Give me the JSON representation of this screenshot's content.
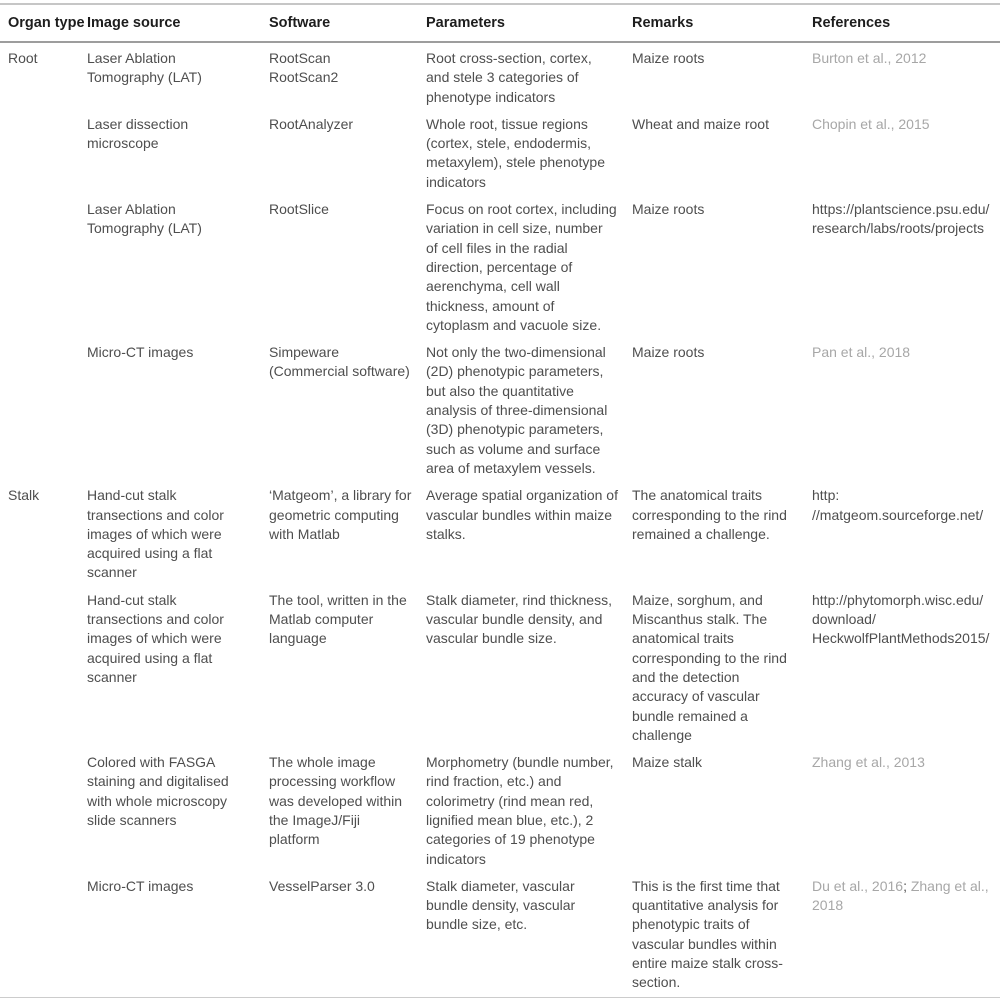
{
  "table": {
    "columns": [
      {
        "key": "organ",
        "label": "Organ type"
      },
      {
        "key": "source",
        "label": "Image source"
      },
      {
        "key": "software",
        "label": "Software"
      },
      {
        "key": "parameters",
        "label": "Parameters"
      },
      {
        "key": "remarks",
        "label": "Remarks"
      },
      {
        "key": "references",
        "label": "References"
      }
    ],
    "rows": [
      {
        "organ": "Root",
        "source": "Laser Ablation Tomography (LAT)",
        "software": "RootScan\nRootScan2",
        "parameters": "Root cross-section, cortex, and stele 3 categories of phenotype indicators",
        "remarks": "Maize roots",
        "references": [
          {
            "text": "Burton et al., 2012",
            "kind": "citation"
          }
        ]
      },
      {
        "organ": "",
        "source": "Laser dissection microscope",
        "software": "RootAnalyzer",
        "parameters": "Whole root, tissue regions (cortex, stele, endodermis, metaxylem), stele phenotype indicators",
        "remarks": "Wheat and maize root",
        "references": [
          {
            "text": "Chopin et al., 2015",
            "kind": "citation"
          }
        ]
      },
      {
        "organ": "",
        "source": "Laser Ablation Tomography (LAT)",
        "software": "RootSlice",
        "parameters": "Focus on root cortex, including variation in cell size, number of cell files in the radial direction, percentage of aerenchyma, cell wall thickness, amount of cytoplasm and vacuole size.",
        "remarks": "Maize roots",
        "references": [
          {
            "text": "https://plantscience.psu.edu/\nresearch/labs/roots/projects",
            "kind": "link"
          }
        ]
      },
      {
        "organ": "",
        "source": "Micro-CT images",
        "software": "Simpeware\n(Commercial software)",
        "parameters": "Not only the two-dimensional (2D) phenotypic parameters, but also the quantitative analysis of three-dimensional (3D) phenotypic parameters, such as volume and surface area of metaxylem vessels.",
        "remarks": "Maize roots",
        "references": [
          {
            "text": "Pan et al., 2018",
            "kind": "citation"
          }
        ]
      },
      {
        "organ": "Stalk",
        "source": "Hand-cut stalk transections and color images of which were acquired using a flat scanner",
        "software": "‘Matgeom’, a library for geometric computing with Matlab",
        "parameters": "Average spatial organization of vascular bundles within maize stalks.",
        "remarks": "The anatomical traits corresponding to the rind remained a challenge.",
        "references": [
          {
            "text": "http:\n//matgeom.sourceforge.net/",
            "kind": "link"
          }
        ]
      },
      {
        "organ": "",
        "source": "Hand-cut stalk transections and color images of which were acquired using a flat scanner",
        "software": "The tool, written in the Matlab computer language",
        "parameters": "Stalk diameter, rind thickness, vascular bundle density, and vascular bundle size.",
        "remarks": "Maize, sorghum, and Miscanthus stalk. The anatomical traits corresponding to the rind and the detection accuracy of vascular bundle remained a challenge",
        "references": [
          {
            "text": "http://phytomorph.wisc.edu/\ndownload/\nHeckwolfPlantMethods2015/",
            "kind": "link"
          }
        ]
      },
      {
        "organ": "",
        "source": "Colored with FASGA staining and digitalised with whole microscopy slide scanners",
        "software": "The whole image processing workflow was developed within the ImageJ/Fiji platform",
        "parameters": "Morphometry (bundle number, rind fraction, etc.) and colorimetry (rind mean red, lignified mean blue, etc.), 2 categories of 19 phenotype indicators",
        "remarks": "Maize stalk",
        "references": [
          {
            "text": "Zhang et al., 2013",
            "kind": "citation"
          }
        ]
      },
      {
        "organ": "",
        "source": "Micro-CT images",
        "software": "VesselParser 3.0",
        "parameters": "Stalk diameter, vascular bundle density, vascular bundle size, etc.",
        "remarks": "This is the first time that quantitative analysis for phenotypic traits of vascular bundles within entire maize stalk cross-section.",
        "references": [
          {
            "text": "Du et al., 2016",
            "kind": "citation"
          },
          {
            "text": "; ",
            "kind": "plain"
          },
          {
            "text": "Zhang et al., 2018",
            "kind": "citation"
          }
        ]
      }
    ],
    "colors": {
      "header_text": "#1d1d1d",
      "body_text": "#4e4e4e",
      "citation_link": "#a7a7a7",
      "rule_top": "#c6c6c6",
      "rule_header": "#9d9d9d",
      "rule_bottom": "#cccccc"
    }
  }
}
